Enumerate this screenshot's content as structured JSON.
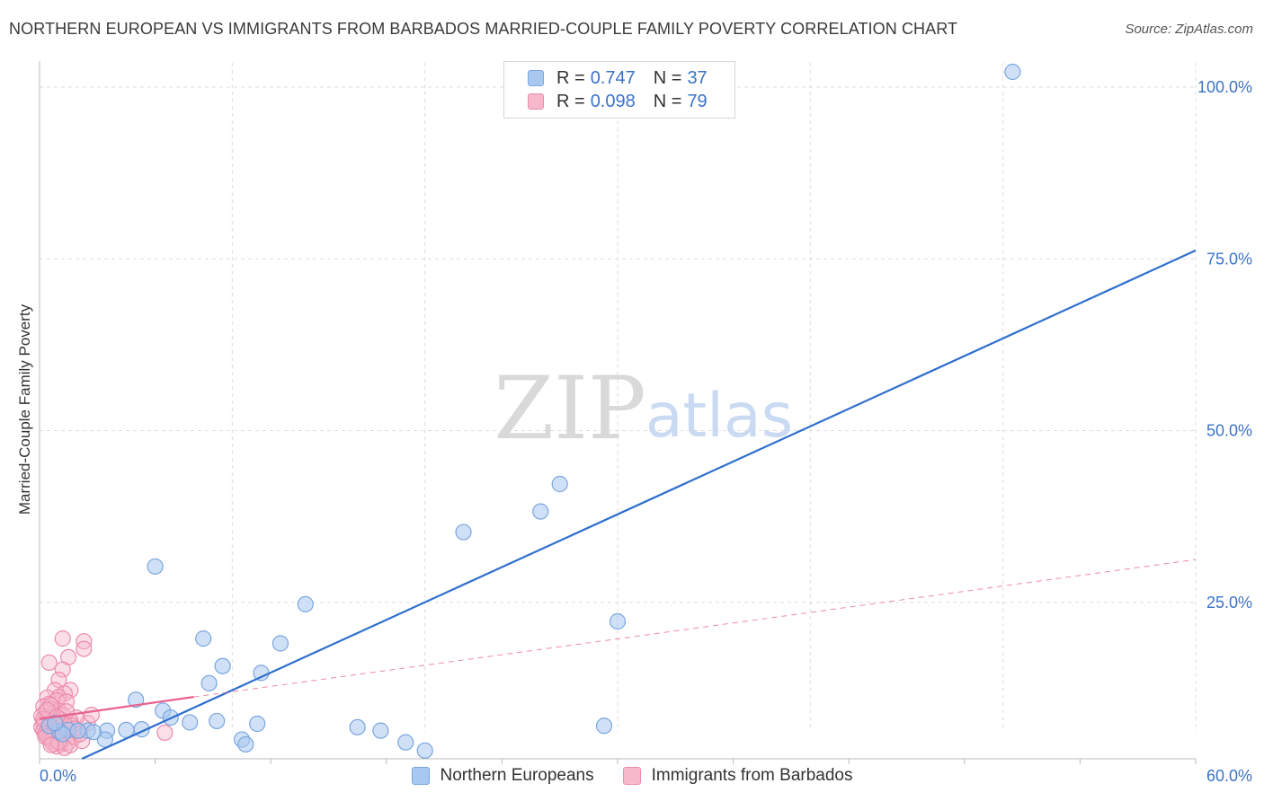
{
  "header": {
    "title": "NORTHERN EUROPEAN VS IMMIGRANTS FROM BARBADOS MARRIED-COUPLE FAMILY POVERTY CORRELATION CHART",
    "source": "Source: ZipAtlas.com"
  },
  "watermark": {
    "zip": "ZIP",
    "atlas": "atlas"
  },
  "legend": {
    "rows": [
      {
        "r_label": "R =",
        "r_value": "0.747",
        "n_label": "N =",
        "n_value": "37",
        "color": "#a9c8f0"
      },
      {
        "r_label": "R =",
        "r_value": "0.098",
        "n_label": "N =",
        "n_value": "79",
        "color": "#f7b8cc"
      }
    ],
    "items": [
      {
        "label": "Northern Europeans",
        "color": "#a9c8f0"
      },
      {
        "label": "Immigrants from Barbados",
        "color": "#f7b8cc"
      }
    ]
  },
  "colors": {
    "blue_fill": "rgba(169,200,240,0.55)",
    "blue_stroke": "#7aa6de",
    "blue_line": "#2f6fcc",
    "pink_fill": "rgba(247,184,204,0.45)",
    "pink_stroke": "#ec8aab",
    "pink_line": "#e8628d",
    "axis_text": "#3b73c6",
    "grid": "#dddddd"
  },
  "chart_data": {
    "type": "scatter",
    "title": "NORTHERN EUROPEAN VS IMMIGRANTS FROM BARBADOS MARRIED-COUPLE FAMILY POVERTY CORRELATION CHART",
    "xlabel": "",
    "ylabel": "Married-Couple Family Poverty",
    "xlim": [
      0,
      60
    ],
    "ylim": [
      0,
      100
    ],
    "x_tick_labels": [
      {
        "value": 0,
        "label": "0.0%"
      },
      {
        "value": 60,
        "label": "60.0%"
      }
    ],
    "y_tick_labels": [
      {
        "value": 25,
        "label": "25.0%"
      },
      {
        "value": 50,
        "label": "50.0%"
      },
      {
        "value": 75,
        "label": "75.0%"
      },
      {
        "value": 100,
        "label": "100.0%"
      }
    ],
    "grid": true,
    "legend_position": "top-center",
    "series": [
      {
        "name": "Northern Europeans",
        "R": 0.747,
        "N": 37,
        "points": [
          [
            50.5,
            100.0
          ],
          [
            27.0,
            40.0
          ],
          [
            26.0,
            36.0
          ],
          [
            22.0,
            33.0
          ],
          [
            6.0,
            28.0
          ],
          [
            13.8,
            22.5
          ],
          [
            30.0,
            20.0
          ],
          [
            8.5,
            17.5
          ],
          [
            12.5,
            16.8
          ],
          [
            11.5,
            12.5
          ],
          [
            9.5,
            13.5
          ],
          [
            8.8,
            11.0
          ],
          [
            5.0,
            8.6
          ],
          [
            6.4,
            7.0
          ],
          [
            7.8,
            5.3
          ],
          [
            6.8,
            6.0
          ],
          [
            9.2,
            5.5
          ],
          [
            11.3,
            5.1
          ],
          [
            3.5,
            4.1
          ],
          [
            4.5,
            4.2
          ],
          [
            2.5,
            4.1
          ],
          [
            1.5,
            4.2
          ],
          [
            2.0,
            4.1
          ],
          [
            3.4,
            2.8
          ],
          [
            10.5,
            2.8
          ],
          [
            10.7,
            2.1
          ],
          [
            16.5,
            4.6
          ],
          [
            17.7,
            4.1
          ],
          [
            19.0,
            2.4
          ],
          [
            20.0,
            1.2
          ],
          [
            29.3,
            4.8
          ],
          [
            5.3,
            4.3
          ],
          [
            1.0,
            4.0
          ],
          [
            0.5,
            4.8
          ],
          [
            1.2,
            3.6
          ],
          [
            0.8,
            5.2
          ],
          [
            2.8,
            3.9
          ]
        ],
        "trend": {
          "x": [
            2.2,
            60.0
          ],
          "y": [
            0.0,
            74.0
          ],
          "style": "solid"
        }
      },
      {
        "name": "Immigrants from Barbados",
        "R": 0.098,
        "N": 79,
        "points": [
          [
            1.2,
            17.5
          ],
          [
            2.3,
            17.1
          ],
          [
            2.3,
            16.0
          ],
          [
            0.5,
            14.0
          ],
          [
            1.5,
            14.8
          ],
          [
            1.2,
            13.0
          ],
          [
            1.0,
            11.5
          ],
          [
            1.6,
            10.0
          ],
          [
            0.8,
            10.0
          ],
          [
            1.3,
            9.5
          ],
          [
            1.0,
            9.0
          ],
          [
            0.4,
            8.9
          ],
          [
            0.9,
            8.5
          ],
          [
            0.5,
            8.0
          ],
          [
            1.4,
            8.3
          ],
          [
            0.2,
            7.6
          ],
          [
            0.6,
            7.2
          ],
          [
            1.0,
            7.0
          ],
          [
            0.3,
            6.8
          ],
          [
            0.7,
            6.5
          ],
          [
            1.2,
            6.4
          ],
          [
            0.1,
            6.2
          ],
          [
            0.5,
            6.0
          ],
          [
            0.8,
            5.9
          ],
          [
            1.1,
            5.7
          ],
          [
            0.3,
            5.6
          ],
          [
            0.6,
            5.4
          ],
          [
            0.9,
            5.3
          ],
          [
            0.2,
            5.1
          ],
          [
            0.5,
            5.0
          ],
          [
            0.8,
            4.9
          ],
          [
            1.2,
            4.8
          ],
          [
            0.1,
            4.6
          ],
          [
            0.4,
            4.5
          ],
          [
            0.7,
            4.4
          ],
          [
            1.0,
            4.3
          ],
          [
            1.3,
            4.2
          ],
          [
            0.2,
            4.1
          ],
          [
            0.5,
            4.0
          ],
          [
            0.8,
            3.9
          ],
          [
            1.1,
            3.8
          ],
          [
            0.3,
            3.7
          ],
          [
            0.6,
            3.6
          ],
          [
            0.9,
            3.5
          ],
          [
            1.4,
            3.4
          ],
          [
            0.4,
            3.3
          ],
          [
            0.7,
            3.2
          ],
          [
            1.0,
            3.1
          ],
          [
            0.5,
            3.0
          ],
          [
            0.8,
            2.9
          ],
          [
            1.2,
            2.8
          ],
          [
            0.6,
            2.6
          ],
          [
            0.9,
            2.5
          ],
          [
            1.5,
            2.4
          ],
          [
            0.7,
            2.2
          ],
          [
            1.1,
            2.1
          ],
          [
            0.9,
            1.8
          ],
          [
            1.3,
            1.6
          ],
          [
            1.6,
            2.0
          ],
          [
            1.8,
            3.2
          ],
          [
            2.0,
            4.0
          ],
          [
            2.5,
            5.2
          ],
          [
            2.7,
            6.4
          ],
          [
            1.9,
            6.0
          ],
          [
            1.6,
            5.5
          ],
          [
            2.2,
            2.6
          ],
          [
            1.7,
            4.8
          ],
          [
            0.6,
            7.8
          ],
          [
            1.4,
            6.9
          ],
          [
            0.3,
            3.2
          ],
          [
            1.0,
            2.4
          ],
          [
            6.5,
            3.8
          ],
          [
            0.2,
            5.8
          ],
          [
            0.4,
            7.1
          ],
          [
            1.8,
            4.4
          ],
          [
            0.6,
            2.0
          ],
          [
            1.3,
            5.0
          ],
          [
            0.9,
            6.1
          ],
          [
            2.1,
            3.6
          ]
        ],
        "trend_solid": {
          "x": [
            0.0,
            8.0
          ],
          "y": [
            5.8,
            9.0
          ],
          "style": "solid"
        },
        "trend_dashed": {
          "x": [
            8.0,
            60.0
          ],
          "y": [
            9.0,
            29.0
          ],
          "style": "dashed"
        }
      }
    ]
  }
}
